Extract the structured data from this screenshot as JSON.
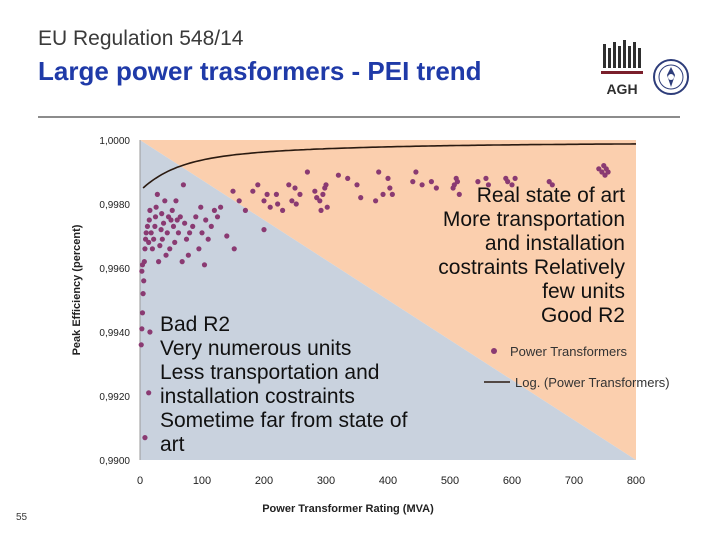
{
  "slide": {
    "pre_title": "EU Regulation 548/14",
    "title": "Large power trasformers - PEI trend",
    "page_number": "55",
    "logo_text": "AGH"
  },
  "annotations": {
    "right": [
      "Real state of art",
      "More transportation",
      "and installation",
      "costraints Relatively",
      "few units",
      "Good R2"
    ],
    "left": [
      "Bad R2",
      "Very numerous units",
      "Less transportation and",
      "installation costraints",
      "Sometime far from state of",
      "art"
    ]
  },
  "colors": {
    "title": "#1f3aa8",
    "upper_region": "#fbcfae",
    "lower_region": "#c9d2de",
    "points": "#8a3a72",
    "trend": "#2a1a10"
  },
  "chart_data": {
    "type": "scatter",
    "xlabel": "Power Transformer Rating (MVA)",
    "ylabel": "Peak Efficiency (percent)",
    "xlim": [
      0,
      800
    ],
    "ylim": [
      0.99,
      1.0
    ],
    "xticks": [
      "0",
      "100",
      "200",
      "300",
      "400",
      "500",
      "600",
      "700",
      "800"
    ],
    "yticks": [
      "0,9900",
      "0,9920",
      "0,9940",
      "0,9960",
      "0,9980",
      "1,0000"
    ],
    "legend": [
      "Power Transformers",
      "Log. (Power Transformers)"
    ],
    "series": [
      {
        "name": "Power Transformers",
        "points": [
          [
            2,
            0.9936
          ],
          [
            3,
            0.9941
          ],
          [
            4,
            0.9946
          ],
          [
            5,
            0.9952
          ],
          [
            3,
            0.9959
          ],
          [
            4,
            0.9961
          ],
          [
            6,
            0.9956
          ],
          [
            7,
            0.9962
          ],
          [
            8,
            0.9966
          ],
          [
            9,
            0.9969
          ],
          [
            10,
            0.9971
          ],
          [
            12,
            0.9973
          ],
          [
            14,
            0.9968
          ],
          [
            15,
            0.9975
          ],
          [
            16,
            0.9978
          ],
          [
            18,
            0.9971
          ],
          [
            20,
            0.9966
          ],
          [
            22,
            0.9969
          ],
          [
            24,
            0.9973
          ],
          [
            25,
            0.9976
          ],
          [
            26,
            0.9979
          ],
          [
            28,
            0.9983
          ],
          [
            30,
            0.9962
          ],
          [
            32,
            0.9967
          ],
          [
            34,
            0.9972
          ],
          [
            35,
            0.9977
          ],
          [
            36,
            0.9969
          ],
          [
            38,
            0.9974
          ],
          [
            40,
            0.9981
          ],
          [
            42,
            0.9964
          ],
          [
            44,
            0.9971
          ],
          [
            46,
            0.9976
          ],
          [
            48,
            0.9966
          ],
          [
            50,
            0.9975
          ],
          [
            52,
            0.9978
          ],
          [
            54,
            0.9973
          ],
          [
            56,
            0.9968
          ],
          [
            58,
            0.9981
          ],
          [
            60,
            0.9975
          ],
          [
            62,
            0.9971
          ],
          [
            65,
            0.9976
          ],
          [
            68,
            0.9962
          ],
          [
            70,
            0.9986
          ],
          [
            72,
            0.9974
          ],
          [
            75,
            0.9969
          ],
          [
            78,
            0.9964
          ],
          [
            80,
            0.9971
          ],
          [
            85,
            0.9973
          ],
          [
            90,
            0.9976
          ],
          [
            95,
            0.9966
          ],
          [
            98,
            0.9979
          ],
          [
            100,
            0.9971
          ],
          [
            104,
            0.9961
          ],
          [
            106,
            0.9975
          ],
          [
            110,
            0.9969
          ],
          [
            115,
            0.9973
          ],
          [
            120,
            0.9978
          ],
          [
            125,
            0.9976
          ],
          [
            130,
            0.9979
          ],
          [
            140,
            0.997
          ],
          [
            150,
            0.9984
          ],
          [
            152,
            0.9966
          ],
          [
            160,
            0.9981
          ],
          [
            170,
            0.9978
          ],
          [
            182,
            0.9984
          ],
          [
            190,
            0.9986
          ],
          [
            200,
            0.9972
          ],
          [
            200,
            0.9981
          ],
          [
            205,
            0.9983
          ],
          [
            210,
            0.9979
          ],
          [
            220,
            0.9983
          ],
          [
            222,
            0.998
          ],
          [
            230,
            0.9978
          ],
          [
            240,
            0.9986
          ],
          [
            245,
            0.9981
          ],
          [
            250,
            0.9985
          ],
          [
            252,
            0.998
          ],
          [
            258,
            0.9983
          ],
          [
            270,
            0.999
          ],
          [
            282,
            0.9984
          ],
          [
            285,
            0.9982
          ],
          [
            290,
            0.9981
          ],
          [
            292,
            0.9978
          ],
          [
            295,
            0.9983
          ],
          [
            298,
            0.9985
          ],
          [
            300,
            0.9986
          ],
          [
            302,
            0.9979
          ],
          [
            320,
            0.9989
          ],
          [
            335,
            0.9988
          ],
          [
            350,
            0.9986
          ],
          [
            356,
            0.9982
          ],
          [
            380,
            0.9981
          ],
          [
            385,
            0.999
          ],
          [
            392,
            0.9983
          ],
          [
            400,
            0.9988
          ],
          [
            403,
            0.9985
          ],
          [
            407,
            0.9983
          ],
          [
            440,
            0.9987
          ],
          [
            445,
            0.999
          ],
          [
            455,
            0.9986
          ],
          [
            470,
            0.9987
          ],
          [
            478,
            0.9985
          ],
          [
            505,
            0.9985
          ],
          [
            507,
            0.9986
          ],
          [
            510,
            0.9988
          ],
          [
            512,
            0.9987
          ],
          [
            515,
            0.9983
          ],
          [
            545,
            0.9987
          ],
          [
            558,
            0.9988
          ],
          [
            562,
            0.9986
          ],
          [
            590,
            0.9988
          ],
          [
            593,
            0.9987
          ],
          [
            600,
            0.9986
          ],
          [
            605,
            0.9988
          ],
          [
            660,
            0.9987
          ],
          [
            665,
            0.9986
          ],
          [
            740,
            0.9991
          ],
          [
            745,
            0.999
          ],
          [
            748,
            0.9992
          ],
          [
            750,
            0.9989
          ],
          [
            752,
            0.9991
          ],
          [
            755,
            0.999
          ],
          [
            8,
            0.9907
          ],
          [
            14,
            0.9921
          ],
          [
            16,
            0.994
          ]
        ]
      }
    ],
    "trend": "logarithmic"
  }
}
